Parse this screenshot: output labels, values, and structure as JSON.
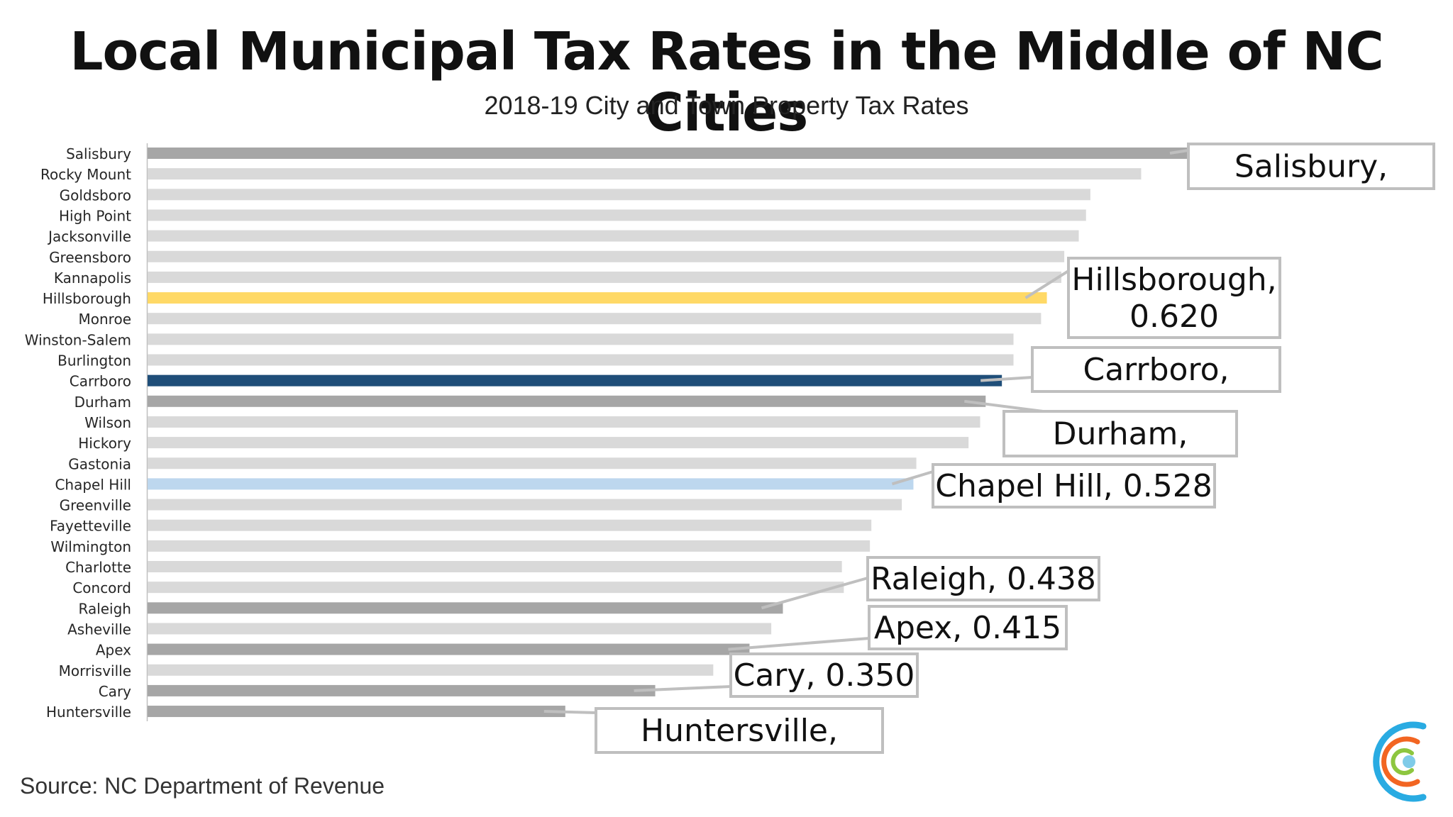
{
  "chart_data": {
    "type": "bar",
    "orientation": "horizontal",
    "title": "Local Municipal Tax Rates in the Middle of NC Cities",
    "subtitle": "2018-19 City and Town Property Tax Rates",
    "categories": [
      "Salisbury",
      "Rocky Mount",
      "Goldsboro",
      "High Point",
      "Jacksonville",
      "Greensboro",
      "Kannapolis",
      "Hillsborough",
      "Monroe",
      "Winston-Salem",
      "Burlington",
      "Carrboro",
      "Durham",
      "Wilson",
      "Hickory",
      "Gastonia",
      "Chapel Hill",
      "Greenville",
      "Fayetteville",
      "Wilmington",
      "Charlotte",
      "Concord",
      "Raleigh",
      "Asheville",
      "Apex",
      "Morrisville",
      "Cary",
      "Huntersville"
    ],
    "values": [
      0.7195,
      0.685,
      0.65,
      0.647,
      0.642,
      0.632,
      0.63,
      0.62,
      0.616,
      0.597,
      0.597,
      0.589,
      0.5778,
      0.574,
      0.566,
      0.53,
      0.528,
      0.52,
      0.499,
      0.498,
      0.4787,
      0.48,
      0.438,
      0.43,
      0.415,
      0.39,
      0.35,
      0.288
    ],
    "bar_colors": [
      "#a6a6a6",
      "#d9d9d9",
      "#d9d9d9",
      "#d9d9d9",
      "#d9d9d9",
      "#d9d9d9",
      "#d9d9d9",
      "#ffd966",
      "#d9d9d9",
      "#d9d9d9",
      "#d9d9d9",
      "#1f4e79",
      "#a6a6a6",
      "#d9d9d9",
      "#d9d9d9",
      "#d9d9d9",
      "#bdd7ee",
      "#d9d9d9",
      "#d9d9d9",
      "#d9d9d9",
      "#d9d9d9",
      "#d9d9d9",
      "#a6a6a6",
      "#d9d9d9",
      "#a6a6a6",
      "#d9d9d9",
      "#a6a6a6",
      "#a6a6a6"
    ],
    "xlim": [
      0,
      0.72
    ],
    "grid": false,
    "callouts": [
      {
        "category": "Salisbury",
        "label": "Salisbury,"
      },
      {
        "category": "Hillsborough",
        "label": "Hillsborough,\n0.620"
      },
      {
        "category": "Carrboro",
        "label": "Carrboro,"
      },
      {
        "category": "Durham",
        "label": "Durham,"
      },
      {
        "category": "Chapel Hill",
        "label": "Chapel Hill, 0.528"
      },
      {
        "category": "Raleigh",
        "label": "Raleigh, 0.438"
      },
      {
        "category": "Apex",
        "label": "Apex, 0.415"
      },
      {
        "category": "Cary",
        "label": "Cary, 0.350"
      },
      {
        "category": "Huntersville",
        "label": "Huntersville,"
      }
    ]
  },
  "source": "Source: NC Department of Revenue",
  "logo": {
    "icon": "concentric-c-logo-icon",
    "colors": [
      "#29abe2",
      "#f26522",
      "#8dc63f",
      "#7fcbe8"
    ]
  }
}
